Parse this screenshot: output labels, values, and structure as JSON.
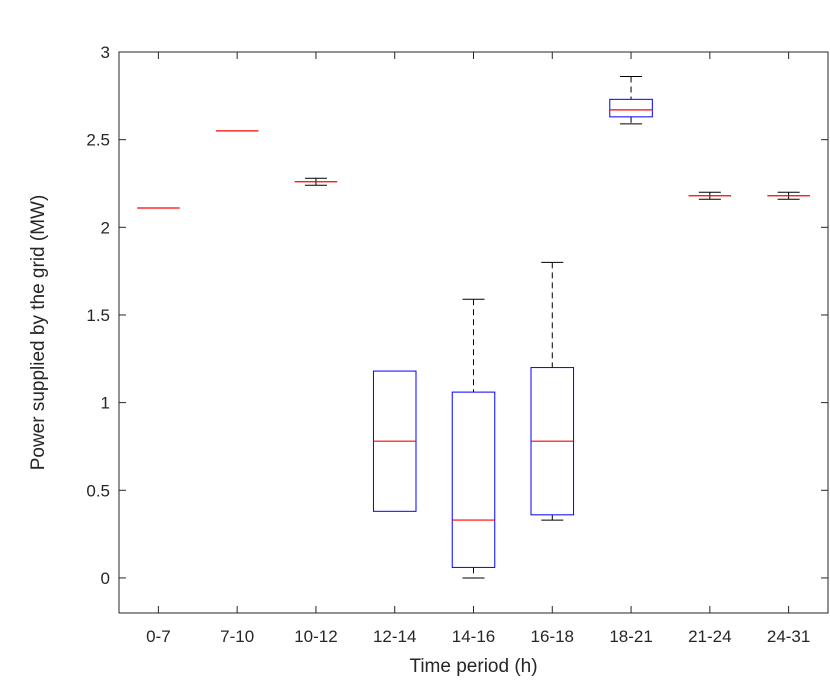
{
  "chart_data": {
    "type": "box",
    "title": "",
    "xlabel": "Time period (h)",
    "ylabel": "Power supplied by the grid (MW)",
    "ylim": [
      -0.2,
      3.0
    ],
    "yticks": [
      0,
      0.5,
      1,
      1.5,
      2,
      2.5,
      3
    ],
    "ytick_labels": [
      "0",
      "0.5",
      "1",
      "1.5",
      "2",
      "2.5",
      "3"
    ],
    "grid": false,
    "categories": [
      "0-7",
      "7-10",
      "10-12",
      "12-14",
      "14-16",
      "16-18",
      "18-21",
      "21-24",
      "24-31"
    ],
    "boxes": [
      {
        "min": 2.11,
        "q1": 2.11,
        "median": 2.11,
        "q3": 2.11,
        "max": 2.11
      },
      {
        "min": 2.55,
        "q1": 2.55,
        "median": 2.55,
        "q3": 2.55,
        "max": 2.55
      },
      {
        "min": 2.24,
        "q1": 2.26,
        "median": 2.26,
        "q3": 2.26,
        "max": 2.28
      },
      {
        "min": 0.38,
        "q1": 0.38,
        "median": 0.78,
        "q3": 1.18,
        "max": 1.18
      },
      {
        "min": 0.0,
        "q1": 0.06,
        "median": 0.33,
        "q3": 1.06,
        "max": 1.59
      },
      {
        "min": 0.33,
        "q1": 0.36,
        "median": 0.78,
        "q3": 1.2,
        "max": 1.8
      },
      {
        "min": 2.59,
        "q1": 2.63,
        "median": 2.67,
        "q3": 2.73,
        "max": 2.86
      },
      {
        "min": 2.16,
        "q1": 2.18,
        "median": 2.18,
        "q3": 2.18,
        "max": 2.2
      },
      {
        "min": 2.16,
        "q1": 2.18,
        "median": 2.18,
        "q3": 2.18,
        "max": 2.2
      }
    ],
    "colors": {
      "box": "#0000ff",
      "median": "#ff0000",
      "whisker": "#000000",
      "axis": "#262626"
    }
  }
}
